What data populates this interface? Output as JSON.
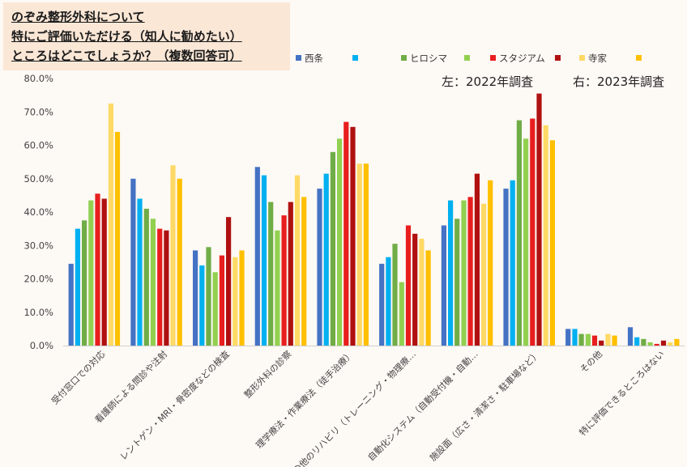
{
  "title_lines": [
    "のぞみ整形外科について",
    "特にご評価いただける（知人に勧めたい）",
    "ところはどこでしょうか？（複数回答可）"
  ],
  "notes": {
    "left": "左：2022年調査",
    "right": "右：2023年調査"
  },
  "chart_data": {
    "type": "bar",
    "ylim": [
      0,
      80
    ],
    "ytick_labels": [
      "0.0%",
      "10.0%",
      "20.0%",
      "30.0%",
      "40.0%",
      "50.0%",
      "60.0%",
      "70.0%",
      "80.0%"
    ],
    "categories": [
      "受付窓口での対応",
      "看護師による問診や注射",
      "レントゲン・MRI・骨密度などの検査",
      "整形外科の診察",
      "理学療法・作業療法（徒手治療）",
      "その他のリハビリ（トレーニング・物理療…",
      "自動化システム（自動受付機・自動…",
      "施設面（広さ・清潔さ・駐車場など）",
      "その他",
      "特に評価できるところはない"
    ],
    "series": [
      {
        "name": "西条",
        "color": "#4472c4",
        "values": [
          24.5,
          50.0,
          28.5,
          53.5,
          47.0,
          24.5,
          36.0,
          47.0,
          5.0,
          5.5
        ]
      },
      {
        "name": "",
        "color": "#00b0f0",
        "values": [
          35.0,
          44.0,
          24.0,
          51.0,
          51.5,
          26.5,
          43.5,
          49.5,
          5.0,
          2.5
        ]
      },
      {
        "name": "ヒロシマ",
        "color": "#70ad47",
        "values": [
          37.5,
          41.0,
          29.5,
          43.0,
          58.0,
          30.5,
          38.0,
          67.5,
          3.5,
          2.0
        ]
      },
      {
        "name": "",
        "color": "#92d050",
        "values": [
          43.5,
          38.0,
          22.0,
          34.5,
          62.0,
          19.0,
          43.5,
          62.0,
          3.5,
          1.0
        ]
      },
      {
        "name": "スタジアム",
        "color": "#e81e1e",
        "values": [
          45.5,
          35.0,
          27.0,
          39.0,
          67.0,
          36.0,
          44.5,
          68.0,
          3.0,
          0.5
        ]
      },
      {
        "name": "",
        "color": "#b01010",
        "values": [
          44.0,
          34.5,
          38.5,
          43.0,
          65.5,
          33.5,
          51.5,
          75.5,
          1.5,
          1.5
        ]
      },
      {
        "name": "寺家",
        "color": "#ffd966",
        "values": [
          72.5,
          54.0,
          26.5,
          51.0,
          54.5,
          32.0,
          42.5,
          66.0,
          3.5,
          1.0
        ]
      },
      {
        "name": "",
        "color": "#ffc000",
        "values": [
          64.0,
          50.0,
          28.5,
          44.5,
          54.5,
          28.5,
          49.5,
          61.5,
          3.0,
          2.0
        ]
      }
    ],
    "legend_position": "top-right",
    "grid": false
  }
}
